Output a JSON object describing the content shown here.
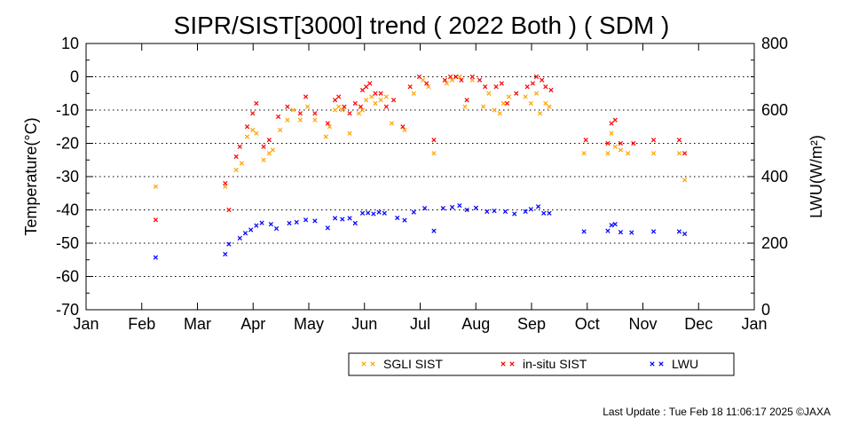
{
  "chart_data": {
    "type": "scatter",
    "title": "SIPR/SIST[3000] trend ( 2022 Both ) ( SDM )",
    "ylabel": "Temperature(°C)",
    "y2label": "LWU(W/m²)",
    "ylim": [
      -70,
      10
    ],
    "y2lim": [
      0,
      800
    ],
    "yticks": [
      "10",
      "0",
      "-10",
      "-20",
      "-30",
      "-40",
      "-50",
      "-60",
      "-70"
    ],
    "y2ticks": [
      "800",
      "600",
      "400",
      "200",
      "0"
    ],
    "xticks": [
      "Jan",
      "Feb",
      "Mar",
      "Apr",
      "May",
      "Jun",
      "Jul",
      "Aug",
      "Sep",
      "Oct",
      "Nov",
      "Dec",
      "Jan"
    ],
    "grid": true,
    "legend_position": "bottom-right",
    "series": [
      {
        "name": "SGLI SIST",
        "color": "#ffa500",
        "axis": "left",
        "points": [
          [
            "2022-02-08",
            -33
          ],
          [
            "2022-03-18",
            -33
          ],
          [
            "2022-03-24",
            -28
          ],
          [
            "2022-03-27",
            -26
          ],
          [
            "2022-03-30",
            -18
          ],
          [
            "2022-04-02",
            -16
          ],
          [
            "2022-04-04",
            -17
          ],
          [
            "2022-04-08",
            -25
          ],
          [
            "2022-04-11",
            -23
          ],
          [
            "2022-04-13",
            -22
          ],
          [
            "2022-04-17",
            -16
          ],
          [
            "2022-04-21",
            -13
          ],
          [
            "2022-04-24",
            -10
          ],
          [
            "2022-04-28",
            -13
          ],
          [
            "2022-05-02",
            -9
          ],
          [
            "2022-05-06",
            -13
          ],
          [
            "2022-05-12",
            -18
          ],
          [
            "2022-05-14",
            -15
          ],
          [
            "2022-05-17",
            -10
          ],
          [
            "2022-05-19",
            -9
          ],
          [
            "2022-05-21",
            -10
          ],
          [
            "2022-05-25",
            -17
          ],
          [
            "2022-05-30",
            -11
          ],
          [
            "2022-06-01",
            -10
          ],
          [
            "2022-06-03",
            -7
          ],
          [
            "2022-06-06",
            -6
          ],
          [
            "2022-06-08",
            -8
          ],
          [
            "2022-06-11",
            -7
          ],
          [
            "2022-06-14",
            -6
          ],
          [
            "2022-06-17",
            -14
          ],
          [
            "2022-06-24",
            -16
          ],
          [
            "2022-06-29",
            -5
          ],
          [
            "2022-07-04",
            -1
          ],
          [
            "2022-07-07",
            -3
          ],
          [
            "2022-07-10",
            -23
          ],
          [
            "2022-07-17",
            -2
          ],
          [
            "2022-07-20",
            -1
          ],
          [
            "2022-07-22",
            0
          ],
          [
            "2022-07-24",
            0
          ],
          [
            "2022-07-27",
            -9
          ],
          [
            "2022-07-31",
            -1
          ],
          [
            "2022-08-06",
            -9
          ],
          [
            "2022-08-09",
            -5
          ],
          [
            "2022-08-12",
            -10
          ],
          [
            "2022-08-15",
            -11
          ],
          [
            "2022-08-17",
            -8
          ],
          [
            "2022-08-20",
            -6
          ],
          [
            "2022-08-29",
            -6
          ],
          [
            "2022-09-01",
            -8
          ],
          [
            "2022-09-04",
            -5
          ],
          [
            "2022-09-06",
            -11
          ],
          [
            "2022-09-09",
            -8
          ],
          [
            "2022-09-11",
            -9
          ],
          [
            "2022-09-30",
            -23
          ],
          [
            "2022-10-13",
            -23
          ],
          [
            "2022-10-15",
            -17
          ],
          [
            "2022-10-17",
            -21
          ],
          [
            "2022-10-20",
            -22
          ],
          [
            "2022-10-24",
            -23
          ],
          [
            "2022-11-07",
            -23
          ],
          [
            "2022-11-21",
            -23
          ],
          [
            "2022-11-24",
            -31
          ]
        ]
      },
      {
        "name": "in-situ SIST",
        "color": "#ff0000",
        "axis": "left",
        "points": [
          [
            "2022-02-08",
            -43
          ],
          [
            "2022-03-18",
            -32
          ],
          [
            "2022-03-20",
            -40
          ],
          [
            "2022-03-24",
            -24
          ],
          [
            "2022-03-26",
            -21
          ],
          [
            "2022-03-30",
            -15
          ],
          [
            "2022-04-02",
            -11
          ],
          [
            "2022-04-04",
            -8
          ],
          [
            "2022-04-08",
            -21
          ],
          [
            "2022-04-11",
            -19
          ],
          [
            "2022-04-16",
            -12
          ],
          [
            "2022-04-21",
            -9
          ],
          [
            "2022-04-28",
            -11
          ],
          [
            "2022-05-01",
            -6
          ],
          [
            "2022-05-06",
            -11
          ],
          [
            "2022-05-13",
            -14
          ],
          [
            "2022-05-17",
            -7
          ],
          [
            "2022-05-19",
            -6
          ],
          [
            "2022-05-22",
            -9
          ],
          [
            "2022-05-25",
            -11
          ],
          [
            "2022-05-28",
            -8
          ],
          [
            "2022-05-31",
            -9
          ],
          [
            "2022-06-01",
            -4
          ],
          [
            "2022-06-03",
            -3
          ],
          [
            "2022-06-05",
            -2
          ],
          [
            "2022-06-08",
            -5
          ],
          [
            "2022-06-11",
            -5
          ],
          [
            "2022-06-14",
            -9
          ],
          [
            "2022-06-18",
            -7
          ],
          [
            "2022-06-23",
            -15
          ],
          [
            "2022-06-27",
            -3
          ],
          [
            "2022-07-02",
            0
          ],
          [
            "2022-07-06",
            -2
          ],
          [
            "2022-07-10",
            -19
          ],
          [
            "2022-07-16",
            -1
          ],
          [
            "2022-07-19",
            0
          ],
          [
            "2022-07-22",
            0
          ],
          [
            "2022-07-25",
            -1
          ],
          [
            "2022-07-28",
            -7
          ],
          [
            "2022-07-31",
            0
          ],
          [
            "2022-08-04",
            -1
          ],
          [
            "2022-08-07",
            -3
          ],
          [
            "2022-08-13",
            -3
          ],
          [
            "2022-08-16",
            -2
          ],
          [
            "2022-08-19",
            -8
          ],
          [
            "2022-08-24",
            -5
          ],
          [
            "2022-08-30",
            -3
          ],
          [
            "2022-09-02",
            -2
          ],
          [
            "2022-09-04",
            0
          ],
          [
            "2022-09-07",
            -1
          ],
          [
            "2022-09-09",
            -3
          ],
          [
            "2022-09-12",
            -4
          ],
          [
            "2022-10-01",
            -19
          ],
          [
            "2022-10-13",
            -20
          ],
          [
            "2022-10-15",
            -14
          ],
          [
            "2022-10-17",
            -13
          ],
          [
            "2022-10-20",
            -20
          ],
          [
            "2022-10-27",
            -20
          ],
          [
            "2022-11-07",
            -19
          ],
          [
            "2022-11-21",
            -19
          ],
          [
            "2022-11-24",
            -23
          ]
        ]
      },
      {
        "name": "LWU",
        "color": "#0000ff",
        "axis": "right",
        "points": [
          [
            "2022-02-08",
            157
          ],
          [
            "2022-03-18",
            167
          ],
          [
            "2022-03-20",
            197
          ],
          [
            "2022-03-26",
            215
          ],
          [
            "2022-03-29",
            230
          ],
          [
            "2022-04-01",
            240
          ],
          [
            "2022-04-04",
            253
          ],
          [
            "2022-04-07",
            261
          ],
          [
            "2022-04-12",
            257
          ],
          [
            "2022-04-15",
            244
          ],
          [
            "2022-04-22",
            260
          ],
          [
            "2022-04-26",
            263
          ],
          [
            "2022-05-01",
            270
          ],
          [
            "2022-05-06",
            267
          ],
          [
            "2022-05-13",
            246
          ],
          [
            "2022-05-17",
            275
          ],
          [
            "2022-05-21",
            272
          ],
          [
            "2022-05-25",
            275
          ],
          [
            "2022-05-28",
            260
          ],
          [
            "2022-06-01",
            290
          ],
          [
            "2022-06-04",
            291
          ],
          [
            "2022-06-07",
            288
          ],
          [
            "2022-06-10",
            293
          ],
          [
            "2022-06-13",
            290
          ],
          [
            "2022-06-20",
            276
          ],
          [
            "2022-06-24",
            269
          ],
          [
            "2022-06-29",
            293
          ],
          [
            "2022-07-05",
            305
          ],
          [
            "2022-07-10",
            237
          ],
          [
            "2022-07-15",
            305
          ],
          [
            "2022-07-20",
            308
          ],
          [
            "2022-07-24",
            313
          ],
          [
            "2022-07-28",
            300
          ],
          [
            "2022-08-02",
            306
          ],
          [
            "2022-08-08",
            295
          ],
          [
            "2022-08-12",
            297
          ],
          [
            "2022-08-18",
            295
          ],
          [
            "2022-08-23",
            288
          ],
          [
            "2022-08-29",
            295
          ],
          [
            "2022-09-01",
            302
          ],
          [
            "2022-09-05",
            310
          ],
          [
            "2022-09-08",
            290
          ],
          [
            "2022-09-11",
            290
          ],
          [
            "2022-09-30",
            235
          ],
          [
            "2022-10-13",
            237
          ],
          [
            "2022-10-15",
            254
          ],
          [
            "2022-10-17",
            257
          ],
          [
            "2022-10-20",
            233
          ],
          [
            "2022-10-26",
            232
          ],
          [
            "2022-11-07",
            235
          ],
          [
            "2022-11-21",
            235
          ],
          [
            "2022-11-24",
            228
          ]
        ]
      }
    ],
    "footer": "Last Update : Tue Feb 18 11:06:17 2025  ©JAXA"
  }
}
